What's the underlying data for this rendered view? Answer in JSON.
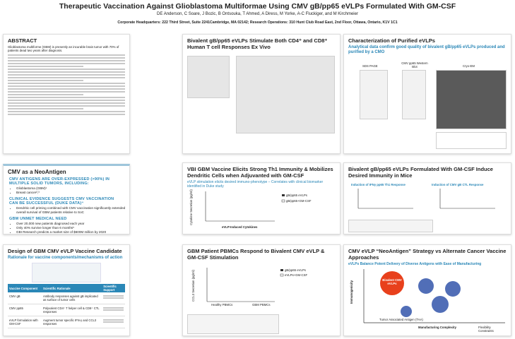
{
  "header": {
    "title": "Therapeutic Vaccination Against Glioblastoma Multiformae Using CMV gB/pp65 eVLPs Formulated With GM-CSF",
    "authors": "DE Anderson, C Soare, J Bozic, B Ontsouka, T Ahmed, A Diress, M Yorke, A-C Fluckiger, and M Kirchmeier",
    "affiliation": "Corporate Headquarters: 222 Third Street, Suite 2241Cambridge, MA 02142; Research Operations: 310 Hunt Club Road East, 2nd Floor, Ottawa, Ontario, K1V 1C1"
  },
  "abstract": {
    "title": "ABSTRACT",
    "text": "Glioblastoma multiforme (GBM) is presently an incurable brain tumor with 70% of patients dead two years after diagnosis."
  },
  "cmv": {
    "title": "CMV as a NeoAntigen",
    "heading1": "CMV ANTIGENS ARE OVER-EXPRESSED (>90%) IN MULTIPLE SOLID TUMORS, INCLUDING:",
    "bullets1": [
      "Glioblastoma (GBM)¹",
      "Breast cancer²,³"
    ],
    "heading2": "CLINICAL EVIDENCE SUGGESTS CMV VACCINATION CAN BE SUCCESSFUL (DUKE DATA)⁴",
    "bullets2": [
      "Dendritic cell priming combined with CMV vaccination significantly extended overall survival of GBM patients relative to SoC"
    ],
    "heading3": "GBM UNMET MEDICAL NEED",
    "bullets3": [
      "Over 20,000 new patients diagnosed each year",
      "Only 40% survive longer than 6 months⁵",
      "GBI Research predicts a market size of $600M million by 2020"
    ]
  },
  "design": {
    "title": "Design of GBM CMV eVLP Vaccine Candidate",
    "subtitle": "Rationale for vaccine components/mechanisms of action",
    "table": {
      "header": [
        "Vaccine Component",
        "Scientific Rationale",
        "Scientific Support"
      ],
      "rows": [
        [
          "CMV gB",
          "Antibody responses against gB implicated as surface of tumor cells"
        ],
        [
          "CMV pp65",
          "Polyvalent CD4⁺ T helper cell & CD8⁺ CTL responses"
        ],
        [
          "eVLP formulation with GM-CSF",
          "Augment tumor specific IFN-γ and CCL3 responses"
        ]
      ]
    }
  },
  "tcell": {
    "title": "Bivalent gB/pp65 eVLPs Stimulate Both CD4⁺ and CD8⁺ Human T cell Responses Ex Vivo"
  },
  "th1": {
    "title": "VBI GBM Vaccine Elicits Strong Th1 Immunity & Mobilizes Dendritic Cells when Adjuvanted with GM-CSF",
    "subtitle": "eVLP stimulation elicits desired immuno-phenotype – Correlates with clinical biomarker identified in Duke study",
    "legend": [
      "gB/pp65 eVLPs",
      "gB/pp65+GM-CSF"
    ],
    "xlabel": "eVLP-Induced Cytokines",
    "ylabel": "Cytokine Secretion (pg/ml)"
  },
  "pbmc": {
    "title": "GBM Patient PBMCs Respond to Bivalent CMV eVLP & GM-CSF Stimulation",
    "legend": [
      "gB/pp65 eVLPs",
      "eVLPs+GM-CSF"
    ],
    "groups": [
      "Healthy PBMCs",
      "GBM PBMCs"
    ],
    "ylabel": "CCL3 Secretion (pg/ml)"
  },
  "charact": {
    "title": "Characterization of Purified eVLPs",
    "subtitle": "Analytical data confirm good quality of bivalent gB/pp65 eVLPs produced and purified by a CMO",
    "panels": [
      "SDS PAGE",
      "CMV pp65 Western Blot",
      "Cryo-EM"
    ]
  },
  "mice": {
    "title": "Bivalent gB/pp65 eVLPs Formulated With GM-CSF Induce Desired Immunity in Mice",
    "panels": [
      "Induction of IFNγ pp65 Th1 Response",
      "Induction of CMV gB CTL Response"
    ]
  },
  "strategy": {
    "title": "CMV eVLP “NeoAntigen” Strategy vs Alternate Cancer Vaccine Approaches",
    "subtitle": "eVLPs Balance Potent Delivery of Diverse Antigens with Ease of Manufacturing",
    "bubble": "Bivalent CMV eVLPs",
    "ylabel": "Immunogenicity",
    "xlabel": "Manufacturing Complexity",
    "taa": "Tumor Associated Antigen (TAA)",
    "flex": "Flexibility Constraints"
  }
}
